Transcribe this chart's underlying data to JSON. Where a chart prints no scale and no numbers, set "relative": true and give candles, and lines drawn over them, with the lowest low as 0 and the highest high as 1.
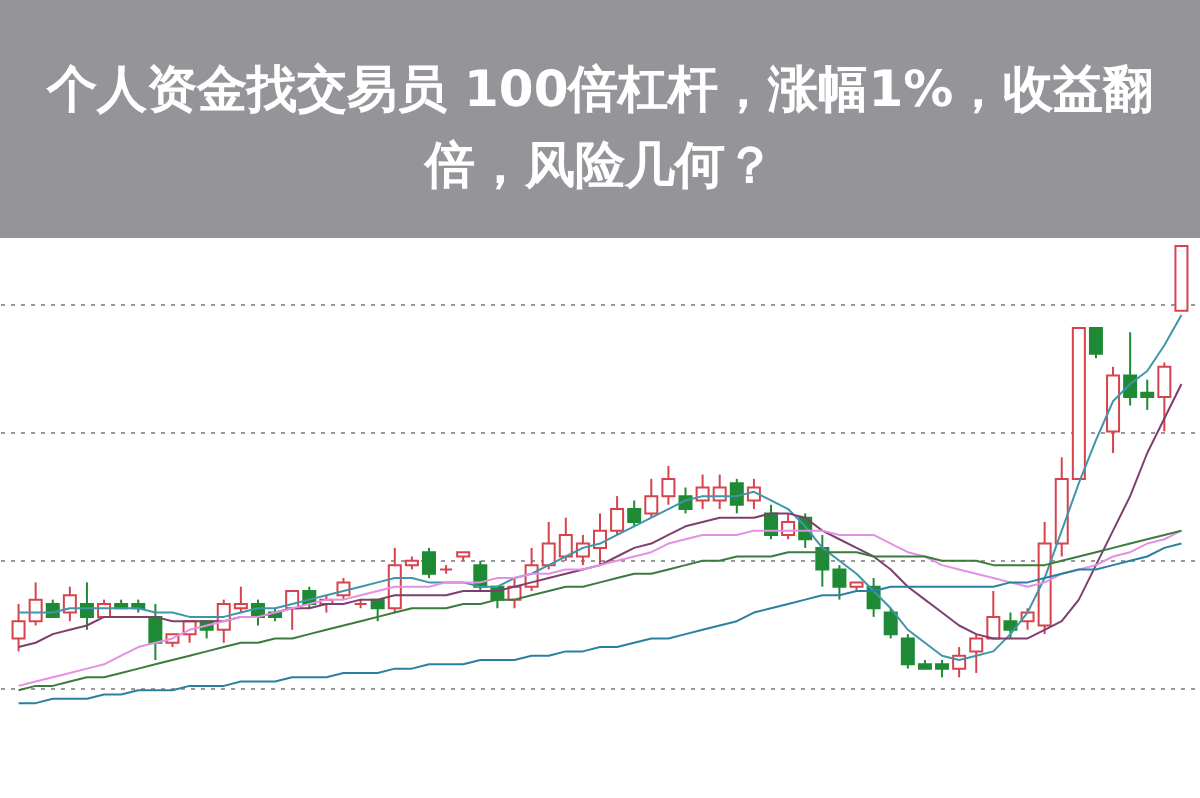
{
  "chart_data": {
    "type": "candlestick",
    "title": "个人资金找交易员 100倍杠杆，涨幅1%，收益翻倍，风险几何？",
    "relative": true,
    "grid": "y",
    "tick_labels": false,
    "categories": [
      null,
      null,
      null,
      null,
      null,
      null,
      null,
      null,
      null,
      null,
      null,
      null,
      null,
      null,
      null,
      null,
      null,
      null,
      null,
      null,
      null,
      null,
      null,
      null,
      null,
      null,
      null,
      null,
      null,
      null,
      null,
      null,
      null,
      null,
      null,
      null,
      null,
      null,
      null,
      null,
      null,
      null,
      null,
      null,
      null,
      null,
      null,
      null,
      null,
      null,
      null,
      null,
      null,
      null,
      null,
      null,
      null,
      null,
      null,
      null,
      null,
      null,
      null,
      null,
      null,
      null,
      null,
      null,
      null
    ],
    "colors": [
      "#d6434c",
      "#d6434c",
      "#1f8a35",
      "#d6434c",
      "#1f8a35",
      "#d6434c",
      "#1f8a35",
      "#1f8a35",
      "#1f8a35",
      "#d6434c",
      "#d6434c",
      "#1f8a35",
      "#d6434c",
      "#d6434c",
      "#1f8a35",
      "#1f8a35",
      "#d6434c",
      "#1f8a35",
      "#d6434c",
      "#d6434c",
      "#d6434c",
      "#1f8a35",
      "#d6434c",
      "#d6434c",
      "#1f8a35",
      "#d6434c",
      "#d6434c",
      "#1f8a35",
      "#1f8a35",
      "#d6434c",
      "#d6434c",
      "#d6434c",
      "#d6434c",
      "#d6434c",
      "#d6434c",
      "#d6434c",
      "#1f8a35",
      "#d6434c",
      "#d6434c",
      "#1f8a35",
      "#d6434c",
      "#d6434c",
      "#1f8a35",
      "#d6434c",
      "#1f8a35",
      "#d6434c",
      "#1f8a35",
      "#1f8a35",
      "#1f8a35",
      "#d6434c",
      "#1f8a35",
      "#1f8a35",
      "#1f8a35",
      "#1f8a35",
      "#1f8a35",
      "#d6434c",
      "#d6434c",
      "#d6434c",
      "#1f8a35",
      "#d6434c",
      "#d6434c",
      "#d6434c",
      "#d6434c",
      "#1f8a35",
      "#d6434c",
      "#1f8a35",
      "#1f8a35",
      "#d6434c",
      "#d6434c"
    ],
    "ohlc": [
      [
        0.09,
        0.17,
        0.06,
        0.13
      ],
      [
        0.13,
        0.22,
        0.12,
        0.18
      ],
      [
        0.17,
        0.18,
        0.14,
        0.14
      ],
      [
        0.15,
        0.21,
        0.13,
        0.19
      ],
      [
        0.17,
        0.22,
        0.11,
        0.14
      ],
      [
        0.14,
        0.18,
        0.14,
        0.17
      ],
      [
        0.17,
        0.18,
        0.16,
        0.16
      ],
      [
        0.17,
        0.18,
        0.15,
        0.16
      ],
      [
        0.14,
        0.17,
        0.04,
        0.08
      ],
      [
        0.08,
        0.1,
        0.07,
        0.1
      ],
      [
        0.1,
        0.13,
        0.08,
        0.13
      ],
      [
        0.13,
        0.13,
        0.09,
        0.11
      ],
      [
        0.11,
        0.18,
        0.08,
        0.17
      ],
      [
        0.16,
        0.21,
        0.15,
        0.17
      ],
      [
        0.17,
        0.18,
        0.12,
        0.14
      ],
      [
        0.15,
        0.16,
        0.13,
        0.14
      ],
      [
        0.16,
        0.2,
        0.11,
        0.2
      ],
      [
        0.2,
        0.21,
        0.16,
        0.17
      ],
      [
        0.17,
        0.19,
        0.15,
        0.18
      ],
      [
        0.19,
        0.23,
        0.18,
        0.22
      ],
      [
        0.17,
        0.18,
        0.16,
        0.17
      ],
      [
        0.18,
        0.18,
        0.13,
        0.16
      ],
      [
        0.16,
        0.3,
        0.15,
        0.26
      ],
      [
        0.26,
        0.28,
        0.25,
        0.27
      ],
      [
        0.29,
        0.3,
        0.23,
        0.24
      ],
      [
        0.25,
        0.26,
        0.24,
        0.25
      ],
      [
        0.28,
        0.29,
        0.27,
        0.29
      ],
      [
        0.26,
        0.27,
        0.2,
        0.21
      ],
      [
        0.21,
        0.21,
        0.16,
        0.18
      ],
      [
        0.18,
        0.23,
        0.16,
        0.21
      ],
      [
        0.21,
        0.3,
        0.2,
        0.26
      ],
      [
        0.26,
        0.36,
        0.25,
        0.31
      ],
      [
        0.28,
        0.37,
        0.27,
        0.33
      ],
      [
        0.28,
        0.33,
        0.26,
        0.31
      ],
      [
        0.3,
        0.38,
        0.26,
        0.34
      ],
      [
        0.34,
        0.42,
        0.33,
        0.39
      ],
      [
        0.39,
        0.41,
        0.35,
        0.36
      ],
      [
        0.38,
        0.46,
        0.37,
        0.42
      ],
      [
        0.42,
        0.49,
        0.4,
        0.46
      ],
      [
        0.42,
        0.44,
        0.38,
        0.39
      ],
      [
        0.41,
        0.47,
        0.39,
        0.44
      ],
      [
        0.41,
        0.47,
        0.39,
        0.44
      ],
      [
        0.45,
        0.46,
        0.38,
        0.4
      ],
      [
        0.41,
        0.46,
        0.39,
        0.44
      ],
      [
        0.38,
        0.4,
        0.32,
        0.33
      ],
      [
        0.33,
        0.38,
        0.32,
        0.36
      ],
      [
        0.37,
        0.38,
        0.3,
        0.32
      ],
      [
        0.3,
        0.33,
        0.21,
        0.25
      ],
      [
        0.25,
        0.26,
        0.18,
        0.21
      ],
      [
        0.21,
        0.22,
        0.2,
        0.22
      ],
      [
        0.21,
        0.23,
        0.14,
        0.16
      ],
      [
        0.15,
        0.16,
        0.09,
        0.1
      ],
      [
        0.09,
        0.1,
        0.02,
        0.03
      ],
      [
        0.03,
        0.04,
        0.02,
        0.02
      ],
      [
        0.03,
        0.04,
        0.0,
        0.02
      ],
      [
        0.02,
        0.07,
        0.0,
        0.05
      ],
      [
        0.06,
        0.1,
        0.01,
        0.09
      ],
      [
        0.09,
        0.2,
        0.09,
        0.14
      ],
      [
        0.13,
        0.15,
        0.09,
        0.11
      ],
      [
        0.13,
        0.16,
        0.11,
        0.15
      ],
      [
        0.12,
        0.36,
        0.1,
        0.31
      ],
      [
        0.31,
        0.51,
        0.28,
        0.46
      ],
      [
        0.46,
        0.81,
        0.46,
        0.81
      ],
      [
        0.81,
        0.81,
        0.74,
        0.75
      ],
      [
        0.57,
        0.72,
        0.52,
        0.7
      ],
      [
        0.7,
        0.8,
        0.63,
        0.65
      ],
      [
        0.66,
        0.69,
        0.62,
        0.65
      ],
      [
        0.65,
        0.73,
        0.57,
        0.72
      ],
      [
        0.85,
        1.0,
        0.85,
        1.0
      ]
    ],
    "series": [
      {
        "type": "line",
        "color": "#3f96a8",
        "values": [
          0.15,
          0.15,
          0.15,
          0.16,
          0.16,
          0.16,
          0.16,
          0.16,
          0.15,
          0.15,
          0.14,
          0.14,
          0.14,
          0.15,
          0.16,
          0.16,
          0.17,
          0.18,
          0.19,
          0.2,
          0.21,
          0.22,
          0.23,
          0.23,
          0.22,
          0.22,
          0.22,
          0.21,
          0.21,
          0.23,
          0.24,
          0.26,
          0.28,
          0.3,
          0.31,
          0.33,
          0.35,
          0.37,
          0.39,
          0.41,
          0.42,
          0.42,
          0.42,
          0.43,
          0.41,
          0.39,
          0.35,
          0.3,
          0.27,
          0.24,
          0.2,
          0.16,
          0.11,
          0.08,
          0.05,
          0.04,
          0.05,
          0.06,
          0.1,
          0.15,
          0.23,
          0.34,
          0.45,
          0.55,
          0.64,
          0.68,
          0.71,
          0.77,
          0.84
        ]
      },
      {
        "type": "line",
        "color": "#7e3f6e",
        "values": [
          0.07,
          0.08,
          0.1,
          0.11,
          0.12,
          0.14,
          0.14,
          0.14,
          0.14,
          0.13,
          0.13,
          0.13,
          0.13,
          0.14,
          0.14,
          0.15,
          0.16,
          0.16,
          0.17,
          0.17,
          0.18,
          0.18,
          0.19,
          0.19,
          0.19,
          0.19,
          0.2,
          0.2,
          0.2,
          0.21,
          0.22,
          0.23,
          0.24,
          0.25,
          0.26,
          0.28,
          0.3,
          0.31,
          0.33,
          0.35,
          0.36,
          0.37,
          0.37,
          0.37,
          0.38,
          0.38,
          0.37,
          0.34,
          0.32,
          0.3,
          0.28,
          0.25,
          0.21,
          0.18,
          0.15,
          0.12,
          0.1,
          0.09,
          0.09,
          0.09,
          0.11,
          0.13,
          0.18,
          0.26,
          0.34,
          0.42,
          0.52,
          0.6,
          0.68
        ]
      },
      {
        "type": "line",
        "color": "#e391e3",
        "values": [
          -0.02,
          -0.01,
          0.0,
          0.01,
          0.02,
          0.03,
          0.05,
          0.07,
          0.08,
          0.09,
          0.11,
          0.12,
          0.13,
          0.14,
          0.14,
          0.15,
          0.16,
          0.17,
          0.18,
          0.18,
          0.19,
          0.2,
          0.21,
          0.21,
          0.21,
          0.22,
          0.22,
          0.22,
          0.23,
          0.23,
          0.24,
          0.24,
          0.25,
          0.25,
          0.26,
          0.27,
          0.28,
          0.29,
          0.31,
          0.32,
          0.33,
          0.33,
          0.33,
          0.34,
          0.34,
          0.34,
          0.34,
          0.34,
          0.33,
          0.33,
          0.33,
          0.31,
          0.29,
          0.28,
          0.26,
          0.25,
          0.24,
          0.23,
          0.22,
          0.21,
          0.22,
          0.24,
          0.25,
          0.26,
          0.28,
          0.29,
          0.31,
          0.32,
          0.34
        ]
      },
      {
        "type": "line",
        "color": "#3d7a3d",
        "values": [
          -0.03,
          -0.02,
          -0.02,
          -0.01,
          0.0,
          0.0,
          0.01,
          0.02,
          0.03,
          0.04,
          0.05,
          0.06,
          0.07,
          0.08,
          0.08,
          0.09,
          0.09,
          0.1,
          0.11,
          0.12,
          0.13,
          0.14,
          0.15,
          0.16,
          0.16,
          0.16,
          0.17,
          0.17,
          0.18,
          0.18,
          0.19,
          0.2,
          0.21,
          0.21,
          0.22,
          0.23,
          0.24,
          0.24,
          0.25,
          0.26,
          0.27,
          0.27,
          0.28,
          0.28,
          0.28,
          0.29,
          0.29,
          0.29,
          0.29,
          0.29,
          0.28,
          0.28,
          0.28,
          0.28,
          0.27,
          0.27,
          0.27,
          0.26,
          0.26,
          0.26,
          0.26,
          0.27,
          0.28,
          0.29,
          0.3,
          0.31,
          0.32,
          0.33,
          0.34
        ]
      },
      {
        "type": "line",
        "color": "#2b7fa3",
        "values": [
          -0.06,
          -0.06,
          -0.05,
          -0.05,
          -0.05,
          -0.04,
          -0.04,
          -0.03,
          -0.03,
          -0.03,
          -0.02,
          -0.02,
          -0.02,
          -0.01,
          -0.01,
          -0.01,
          0.0,
          0.0,
          0.0,
          0.01,
          0.01,
          0.01,
          0.02,
          0.02,
          0.03,
          0.03,
          0.03,
          0.04,
          0.04,
          0.04,
          0.05,
          0.05,
          0.06,
          0.06,
          0.07,
          0.07,
          0.08,
          0.09,
          0.09,
          0.1,
          0.11,
          0.12,
          0.13,
          0.15,
          0.16,
          0.17,
          0.18,
          0.19,
          0.19,
          0.2,
          0.2,
          0.21,
          0.21,
          0.21,
          0.21,
          0.21,
          0.21,
          0.21,
          0.22,
          0.22,
          0.23,
          0.24,
          0.25,
          0.25,
          0.26,
          0.27,
          0.28,
          0.3,
          0.31
        ]
      }
    ]
  }
}
